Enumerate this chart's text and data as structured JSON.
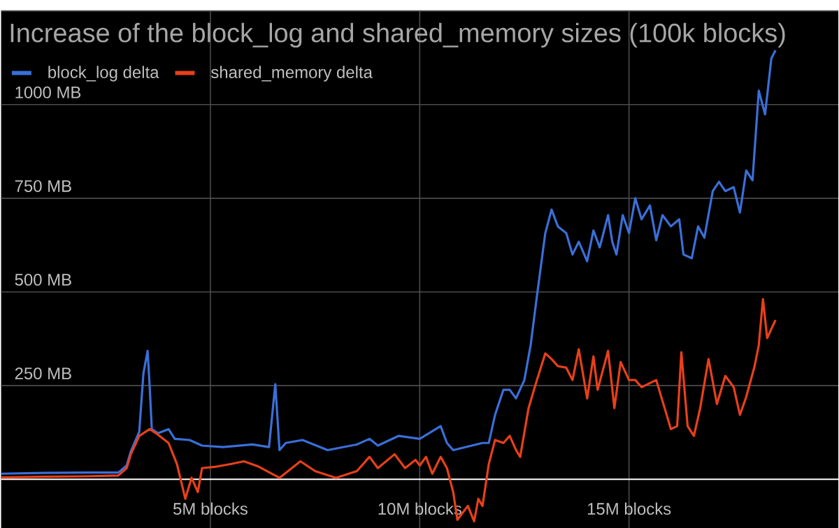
{
  "chart_data": {
    "type": "line",
    "title": "Increase of the block_log and shared_memory sizes (100k blocks)",
    "xlim": [
      0,
      20
    ],
    "ylim": [
      -130,
      1250
    ],
    "xticks": [
      {
        "value": 5,
        "label": "5M blocks"
      },
      {
        "value": 10,
        "label": "10M blocks"
      },
      {
        "value": 15,
        "label": "15M blocks"
      }
    ],
    "yticks": [
      {
        "value": 0,
        "label": null
      },
      {
        "value": 250,
        "label": "250 MB"
      },
      {
        "value": 500,
        "label": "500 MB"
      },
      {
        "value": 750,
        "label": "750 MB"
      },
      {
        "value": 1000,
        "label": "1000 MB"
      },
      {
        "value": 1250,
        "label": null
      }
    ],
    "grid": true,
    "legend": "top left",
    "series": [
      {
        "name": "block_log delta",
        "color": "#3a6fd8",
        "x": [
          0,
          1,
          2,
          2.8,
          3.0,
          3.1,
          3.3,
          3.4,
          3.5,
          3.55,
          3.6,
          3.75,
          4.0,
          4.15,
          4.5,
          4.8,
          5.3,
          6.0,
          6.4,
          6.55,
          6.65,
          6.8,
          7.2,
          7.8,
          8.5,
          8.8,
          9.0,
          9.5,
          10.0,
          10.5,
          10.65,
          10.8,
          11.5,
          11.65,
          11.8,
          12.0,
          12.15,
          12.3,
          12.5,
          12.65,
          12.8,
          13.0,
          13.15,
          13.3,
          13.5,
          13.65,
          13.8,
          14.0,
          14.15,
          14.3,
          14.5,
          14.6,
          14.7,
          14.85,
          15.0,
          15.15,
          15.3,
          15.5,
          15.65,
          15.8,
          16.0,
          16.2,
          16.3,
          16.5,
          16.65,
          16.8,
          17.0,
          17.15,
          17.3,
          17.5,
          17.65,
          17.8,
          17.95,
          18.1,
          18.25,
          18.4,
          18.5
        ],
        "values": [
          15,
          17,
          18,
          18,
          37,
          75,
          127,
          283,
          343,
          246,
          134,
          123,
          134,
          108,
          105,
          90,
          86,
          93,
          86,
          254,
          78,
          97,
          105,
          78,
          93,
          108,
          90,
          116,
          108,
          142,
          97,
          78,
          97,
          97,
          172,
          239,
          239,
          216,
          265,
          358,
          489,
          657,
          720,
          675,
          657,
          600,
          634,
          582,
          664,
          619,
          705,
          634,
          600,
          705,
          657,
          750,
          694,
          731,
          638,
          705,
          675,
          694,
          600,
          590,
          675,
          645,
          769,
          794,
          769,
          780,
          712,
          824,
          798,
          1037,
          974,
          1123,
          1145
        ]
      },
      {
        "name": "shared_memory delta",
        "color": "#e8401a",
        "x": [
          0,
          1,
          2,
          2.8,
          3.0,
          3.1,
          3.3,
          3.55,
          3.7,
          4.0,
          4.2,
          4.4,
          4.55,
          4.7,
          4.8,
          5.15,
          5.5,
          5.8,
          6.15,
          6.65,
          7.15,
          7.5,
          8.0,
          8.5,
          8.8,
          9.0,
          9.4,
          9.65,
          9.9,
          10.0,
          10.15,
          10.3,
          10.5,
          10.65,
          10.8,
          10.9,
          11.15,
          11.3,
          11.4,
          11.5,
          11.65,
          11.8,
          12.0,
          12.15,
          12.3,
          12.4,
          12.6,
          12.8,
          13.0,
          13.15,
          13.3,
          13.5,
          13.65,
          13.8,
          14.0,
          14.15,
          14.25,
          14.5,
          14.65,
          14.8,
          15.0,
          15.15,
          15.3,
          15.65,
          15.8,
          16.0,
          16.15,
          16.25,
          16.4,
          16.55,
          16.7,
          16.9,
          17.1,
          17.3,
          17.5,
          17.65,
          17.8,
          18.0,
          18.1,
          18.2,
          18.3,
          18.5
        ],
        "values": [
          5,
          7,
          8,
          10,
          30,
          67,
          116,
          134,
          123,
          97,
          41,
          -52,
          4,
          -34,
          30,
          34,
          41,
          48,
          34,
          4,
          48,
          22,
          4,
          22,
          60,
          30,
          67,
          30,
          52,
          37,
          60,
          15,
          60,
          30,
          -34,
          -108,
          -71,
          -112,
          -52,
          -71,
          41,
          105,
          97,
          116,
          78,
          60,
          190,
          265,
          336,
          321,
          302,
          298,
          265,
          347,
          216,
          328,
          239,
          343,
          190,
          313,
          265,
          265,
          246,
          265,
          209,
          134,
          142,
          339,
          142,
          116,
          190,
          321,
          201,
          276,
          246,
          172,
          220,
          302,
          358,
          481,
          377,
          425
        ]
      }
    ]
  }
}
